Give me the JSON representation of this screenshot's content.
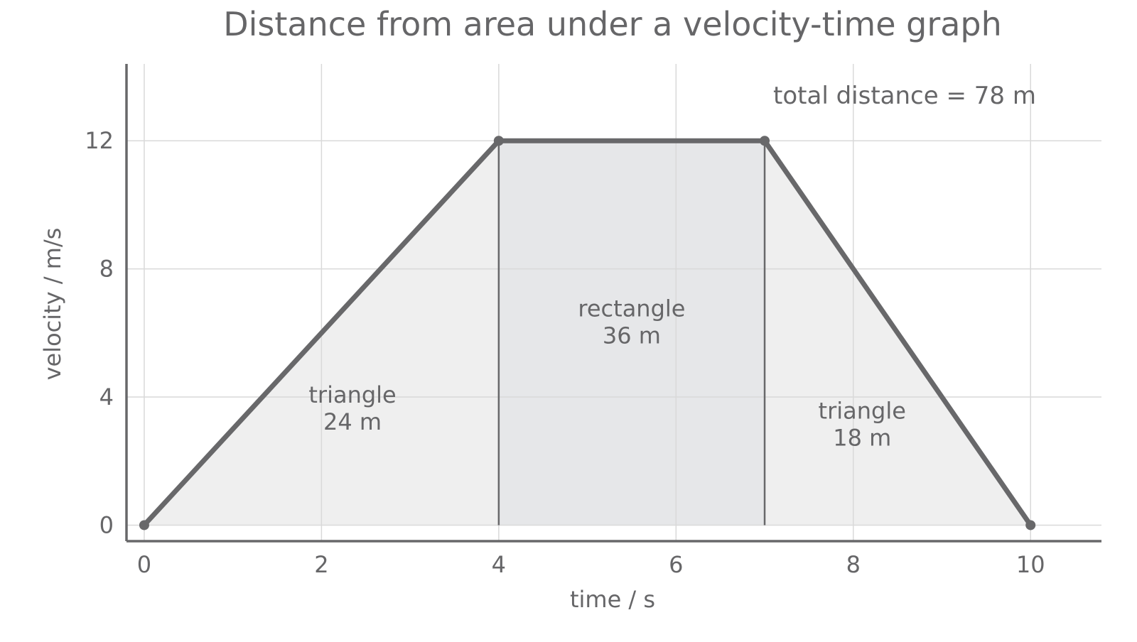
{
  "chart_data": {
    "type": "area",
    "title": "Distance from area under a velocity-time graph",
    "xlabel": "time / s",
    "ylabel": "velocity / m/s",
    "xlim": [
      -0.2,
      10.8
    ],
    "ylim": [
      -0.5,
      14.4
    ],
    "xticks": [
      0,
      2,
      4,
      6,
      8,
      10
    ],
    "yticks": [
      0,
      4,
      8,
      12
    ],
    "grid": true,
    "series": [
      {
        "x": [
          0,
          4,
          7,
          10
        ],
        "y": [
          0,
          12,
          12,
          0
        ]
      }
    ],
    "regions": [
      {
        "shape": "triangle",
        "x_from": 0,
        "x_to": 4,
        "label": "triangle",
        "value": "24 m",
        "fill": "#efefef",
        "label_x": 2.35,
        "label_y": 3.6
      },
      {
        "shape": "rectangle",
        "x_from": 4,
        "x_to": 7,
        "label": "rectangle",
        "value": "36 m",
        "fill": "#e6e7e9",
        "label_x": 5.5,
        "label_y": 6.3
      },
      {
        "shape": "triangle",
        "x_from": 7,
        "x_to": 10,
        "label": "triangle",
        "value": "18 m",
        "fill": "#efefef",
        "label_x": 8.1,
        "label_y": 3.1
      }
    ],
    "annotation": "total distance = 78 m",
    "colors": {
      "line": "#68686a",
      "text": "#666668",
      "grid": "#d9d9d9",
      "axis": "#68686a"
    }
  }
}
